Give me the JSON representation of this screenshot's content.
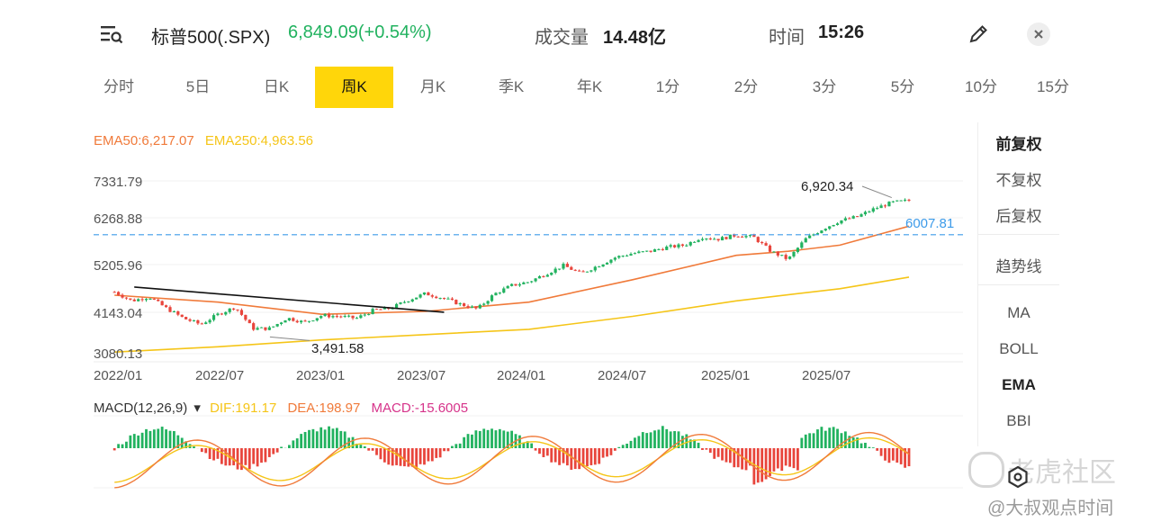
{
  "header": {
    "menu_icon": "menu-search-icon",
    "title": "标普500(.SPX)",
    "price": "6,849.09(+0.54%)",
    "volume_label": "成交量",
    "volume_value": "14.48亿",
    "time_label": "时间",
    "time_value": "15:26",
    "edit_icon": "pencil-icon",
    "close_icon": "close-icon"
  },
  "tabs": [
    "分时",
    "5日",
    "日K",
    "周K",
    "月K",
    "季K",
    "年K",
    "1分",
    "2分",
    "3分",
    "5分",
    "10分",
    "15分"
  ],
  "active_tab": "周K",
  "indicators": {
    "ema50": "EMA50:6,217.07",
    "ema250": "EMA250:4,963.56"
  },
  "price_axis": [
    "7331.79",
    "6268.88",
    "5205.96",
    "4143.04",
    "3080.13"
  ],
  "price_line_label": "6007.81",
  "annotations": {
    "high": "6,920.34",
    "low": "3,491.58"
  },
  "time_axis": [
    "2022/01",
    "2022/07",
    "2023/01",
    "2023/07",
    "2024/01",
    "2024/07",
    "2025/01",
    "2025/07"
  ],
  "macd": {
    "name": "MACD(12,26,9)",
    "dif": "DIF:191.17",
    "dea": "DEA:198.97",
    "macd": "MACD:-15.6005"
  },
  "right_panel": {
    "adjust": [
      "前复权",
      "不复权",
      "后复权"
    ],
    "selected_adjust": "前复权",
    "trend": "趋势线",
    "overlays": [
      "MA",
      "BOLL",
      "EMA",
      "BBI"
    ],
    "selected_overlay": "EMA"
  },
  "watermark": "老虎社区",
  "watermark_sub": "@大叔观点时间",
  "colors": {
    "up": "#21b25f",
    "down": "#e8453c",
    "ema50": "#f07a3a",
    "ema250": "#f5c518",
    "dashed": "#3d9be9",
    "active_tab": "#ffd60a",
    "trendline": "#111111"
  },
  "chart_data": {
    "type": "candlestick",
    "period": "weekly",
    "x_range": [
      "2021-12",
      "2025-11"
    ],
    "y_range": [
      3080.13,
      7331.79
    ],
    "price_line": 6007.81,
    "high_point": {
      "date": "2025-10",
      "value": 6920.34
    },
    "low_point": {
      "date": "2022-10",
      "value": 3491.58
    },
    "close_approx": [
      [
        "2022-01",
        4600
      ],
      [
        "2022-02",
        4380
      ],
      [
        "2022-03",
        4480
      ],
      [
        "2022-04",
        4200
      ],
      [
        "2022-05",
        3950
      ],
      [
        "2022-06",
        3800
      ],
      [
        "2022-07",
        4050
      ],
      [
        "2022-08",
        4230
      ],
      [
        "2022-09",
        3700
      ],
      [
        "2022-10",
        3700
      ],
      [
        "2022-11",
        3960
      ],
      [
        "2022-12",
        3850
      ],
      [
        "2023-01",
        4020
      ],
      [
        "2023-02",
        4000
      ],
      [
        "2023-03",
        3950
      ],
      [
        "2023-04",
        4150
      ],
      [
        "2023-05",
        4200
      ],
      [
        "2023-06",
        4400
      ],
      [
        "2023-07",
        4560
      ],
      [
        "2023-08",
        4450
      ],
      [
        "2023-09",
        4300
      ],
      [
        "2023-10",
        4180
      ],
      [
        "2023-11",
        4550
      ],
      [
        "2023-12",
        4760
      ],
      [
        "2024-01",
        4850
      ],
      [
        "2024-02",
        5050
      ],
      [
        "2024-03",
        5250
      ],
      [
        "2024-04",
        5050
      ],
      [
        "2024-05",
        5250
      ],
      [
        "2024-06",
        5450
      ],
      [
        "2024-07",
        5550
      ],
      [
        "2024-08",
        5600
      ],
      [
        "2024-09",
        5700
      ],
      [
        "2024-10",
        5750
      ],
      [
        "2024-11",
        5950
      ],
      [
        "2024-12",
        5900
      ],
      [
        "2025-01",
        6000
      ],
      [
        "2025-02",
        5950
      ],
      [
        "2025-03",
        5600
      ],
      [
        "2025-04",
        5400
      ],
      [
        "2025-05",
        5900
      ],
      [
        "2025-06",
        6150
      ],
      [
        "2025-07",
        6350
      ],
      [
        "2025-08",
        6450
      ],
      [
        "2025-09",
        6650
      ],
      [
        "2025-10",
        6800
      ],
      [
        "2025-11",
        6849.09
      ]
    ],
    "ema50_approx": [
      [
        "2022-01",
        4520
      ],
      [
        "2022-07",
        4350
      ],
      [
        "2023-01",
        4050
      ],
      [
        "2023-07",
        4120
      ],
      [
        "2024-01",
        4350
      ],
      [
        "2024-07",
        4900
      ],
      [
        "2025-01",
        5500
      ],
      [
        "2025-04",
        5600
      ],
      [
        "2025-07",
        5750
      ],
      [
        "2025-11",
        6217.07
      ]
    ],
    "ema250_approx": [
      [
        "2022-01",
        3120
      ],
      [
        "2022-07",
        3250
      ],
      [
        "2023-01",
        3420
      ],
      [
        "2023-07",
        3550
      ],
      [
        "2024-01",
        3680
      ],
      [
        "2024-07",
        4000
      ],
      [
        "2025-01",
        4380
      ],
      [
        "2025-07",
        4680
      ],
      [
        "2025-11",
        4963.56
      ]
    ],
    "trendline": {
      "from": [
        "2022-01",
        4720
      ],
      "to": [
        "2023-06",
        4100
      ]
    }
  }
}
